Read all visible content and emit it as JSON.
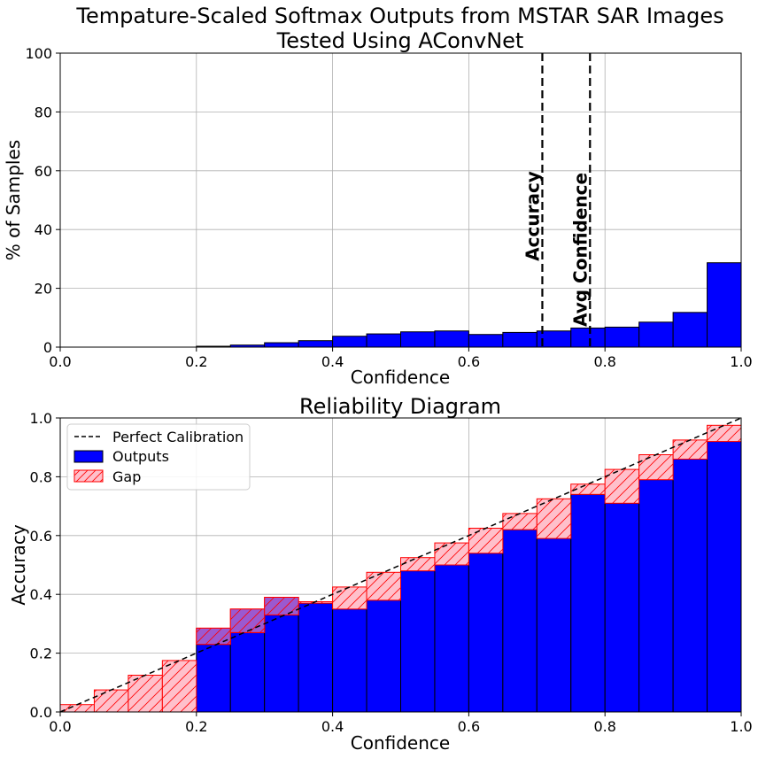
{
  "colors": {
    "outputs_fill": "#0000ff",
    "outputs_edge": "#000000",
    "gap_fill": "#ffc0cb",
    "gap_edge": "#ff0000",
    "gap_overlap": "#9b59d0",
    "grid": "#b0b0b0",
    "reference_line": "#000000"
  },
  "chart_data": [
    {
      "type": "bar",
      "title_line1": "Tempature-Scaled Softmax Outputs from MSTAR SAR Images",
      "title_line2": "Tested Using AConvNet",
      "xlabel": "Confidence",
      "ylabel": "% of Samples",
      "xlim": [
        0.0,
        1.0
      ],
      "ylim": [
        0,
        100
      ],
      "grid": true,
      "x_ticks": [
        "0.0",
        "0.2",
        "0.4",
        "0.6",
        "0.8",
        "1.0"
      ],
      "y_ticks": [
        "0",
        "20",
        "40",
        "60",
        "80",
        "100"
      ],
      "bin_width": 0.05,
      "bin_starts": [
        0.0,
        0.05,
        0.1,
        0.15,
        0.2,
        0.25,
        0.3,
        0.35,
        0.4,
        0.45,
        0.5,
        0.55,
        0.6,
        0.65,
        0.7,
        0.75,
        0.8,
        0.85,
        0.9,
        0.95
      ],
      "values": [
        0,
        0,
        0,
        0,
        0.3,
        0.7,
        1.5,
        2.2,
        3.7,
        4.5,
        5.2,
        5.5,
        4.3,
        5.0,
        5.5,
        6.5,
        6.8,
        8.5,
        11.8,
        28.7
      ],
      "reference_lines": [
        {
          "x": 0.708,
          "label": "Accuracy"
        },
        {
          "x": 0.778,
          "label": "Avg Confidence"
        }
      ]
    },
    {
      "type": "bar",
      "title": "Reliability Diagram",
      "xlabel": "Confidence",
      "ylabel": "Accuracy",
      "xlim": [
        0.0,
        1.0
      ],
      "ylim": [
        0.0,
        1.0
      ],
      "grid": true,
      "x_ticks": [
        "0.0",
        "0.2",
        "0.4",
        "0.6",
        "0.8",
        "1.0"
      ],
      "y_ticks": [
        "0.0",
        "0.2",
        "0.4",
        "0.6",
        "0.8",
        "1.0"
      ],
      "bin_width": 0.05,
      "bin_starts": [
        0.0,
        0.05,
        0.1,
        0.15,
        0.2,
        0.25,
        0.3,
        0.35,
        0.4,
        0.45,
        0.5,
        0.55,
        0.6,
        0.65,
        0.7,
        0.75,
        0.8,
        0.85,
        0.9,
        0.95
      ],
      "legend_position": "upper-left",
      "series": [
        {
          "name": "Outputs",
          "values": [
            0,
            0,
            0,
            0,
            0.23,
            0.27,
            0.33,
            0.37,
            0.35,
            0.38,
            0.48,
            0.5,
            0.54,
            0.62,
            0.59,
            0.74,
            0.71,
            0.79,
            0.86,
            0.92
          ]
        },
        {
          "name": "Gap",
          "values": [
            0.025,
            0.075,
            0.125,
            0.175,
            0.285,
            0.35,
            0.39,
            0.375,
            0.425,
            0.475,
            0.525,
            0.575,
            0.625,
            0.675,
            0.725,
            0.775,
            0.825,
            0.875,
            0.925,
            0.975
          ]
        }
      ],
      "reference_line": {
        "name": "Perfect Calibration",
        "from": [
          0,
          0
        ],
        "to": [
          1,
          1
        ],
        "style": "dashed"
      }
    }
  ]
}
